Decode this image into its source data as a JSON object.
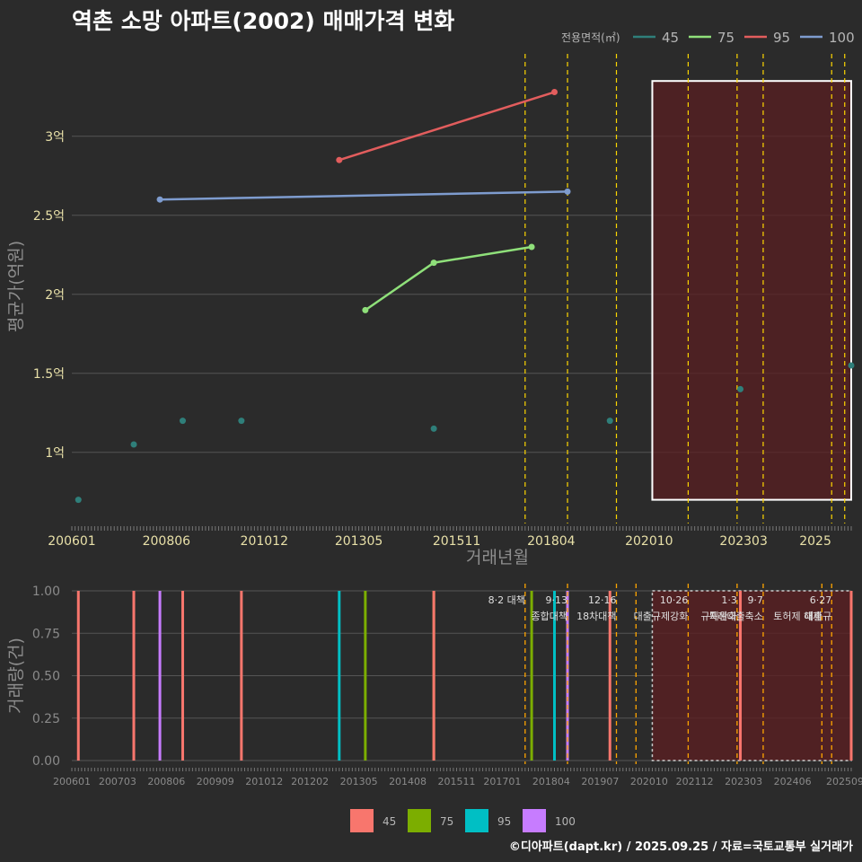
{
  "header": {
    "title": "역촌 소망 아파트(2002) 매매가격 변화",
    "footer": "©디아파트(dapt.kr) / 2025.09.25 / 자료=국토교통부 실거래가"
  },
  "colors": {
    "background": "#2b2b2b",
    "grid": "#555555",
    "event_line": "#ffd700",
    "event_line_bottom": "#ffa500",
    "shade": "#5a1f22"
  },
  "legend": {
    "title": "전용면적(㎡)",
    "position": "top-right",
    "items": [
      {
        "label": "45",
        "color": "#2f7f7a"
      },
      {
        "label": "75",
        "color": "#8fe07a"
      },
      {
        "label": "95",
        "color": "#e25d5d"
      },
      {
        "label": "100",
        "color": "#7e9ccf"
      }
    ]
  },
  "bottom_legend": {
    "position": "bottom",
    "items": [
      {
        "label": "45",
        "color": "#f8766d"
      },
      {
        "label": "75",
        "color": "#7cae00"
      },
      {
        "label": "95",
        "color": "#00bfc4"
      },
      {
        "label": "100",
        "color": "#c77cff"
      }
    ]
  },
  "chart_data": [
    {
      "type": "line",
      "title": "역촌 소망 아파트(2002) 매매가격 변화",
      "xlabel": "거래년월",
      "ylabel": "평균가(억원)",
      "x_ticks": [
        "200601",
        "200806",
        "201012",
        "201305",
        "201511",
        "201804",
        "202010",
        "202303",
        "2025"
      ],
      "y_ticks": [
        "1억",
        "1.5억",
        "2억",
        "2.5억",
        "3억"
      ],
      "y_tick_values": [
        1,
        1.5,
        2,
        2.5,
        3
      ],
      "xlim": [
        "2006-01",
        "2025-12"
      ],
      "ylim": [
        0.55,
        3.55
      ],
      "grid": true,
      "series": [
        {
          "name": "45",
          "mode": "points",
          "color": "#2f7f7a",
          "points": [
            {
              "x": "2006-03",
              "y": 0.7
            },
            {
              "x": "2007-08",
              "y": 1.05
            },
            {
              "x": "2008-11",
              "y": 1.2
            },
            {
              "x": "2010-05",
              "y": 1.2
            },
            {
              "x": "2015-04",
              "y": 1.15
            },
            {
              "x": "2019-10",
              "y": 1.2
            },
            {
              "x": "2023-02",
              "y": 1.4
            },
            {
              "x": "2025-12",
              "y": 1.55
            }
          ]
        },
        {
          "name": "75",
          "mode": "line",
          "color": "#8fe07a",
          "points": [
            {
              "x": "2013-07",
              "y": 1.9
            },
            {
              "x": "2015-04",
              "y": 2.2
            },
            {
              "x": "2017-10",
              "y": 2.3
            }
          ]
        },
        {
          "name": "95",
          "mode": "line",
          "color": "#e25d5d",
          "points": [
            {
              "x": "2012-11",
              "y": 2.85
            },
            {
              "x": "2018-05",
              "y": 3.28
            }
          ]
        },
        {
          "name": "100",
          "mode": "line",
          "color": "#7e9ccf",
          "points": [
            {
              "x": "2008-04",
              "y": 2.6
            },
            {
              "x": "2018-09",
              "y": 2.65
            }
          ]
        }
      ],
      "event_lines": [
        "2017-08",
        "2018-09",
        "2019-12",
        "2021-10",
        "2023-01",
        "2023-09",
        "2025-06",
        "2025-10"
      ],
      "shaded_region": {
        "x": [
          "2020-11",
          "2025-12"
        ],
        "y": [
          0.7,
          3.35
        ]
      }
    },
    {
      "type": "bar",
      "xlabel": "",
      "ylabel": "거래량(건)",
      "x_ticks": [
        "200601",
        "200703",
        "200806",
        "200909",
        "201012",
        "201202",
        "201305",
        "201408",
        "201511",
        "201701",
        "201804",
        "201907",
        "202010",
        "202112",
        "202303",
        "202406",
        "202509"
      ],
      "y_ticks": [
        "0.00",
        "0.25",
        "0.50",
        "0.75",
        "1.00"
      ],
      "y_tick_values": [
        0,
        0.25,
        0.5,
        0.75,
        1.0
      ],
      "ylim": [
        0,
        1.0
      ],
      "grid": true,
      "bars": [
        {
          "x": "2006-03",
          "value": 1,
          "series": "45"
        },
        {
          "x": "2007-08",
          "value": 1,
          "series": "45"
        },
        {
          "x": "2008-04",
          "value": 1,
          "series": "100"
        },
        {
          "x": "2008-11",
          "value": 1,
          "series": "45"
        },
        {
          "x": "2010-05",
          "value": 1,
          "series": "45"
        },
        {
          "x": "2012-11",
          "value": 1,
          "series": "95"
        },
        {
          "x": "2013-07",
          "value": 1,
          "series": "75"
        },
        {
          "x": "2015-04",
          "value": 1,
          "series": "75"
        },
        {
          "x": "2015-04",
          "value": 1,
          "series": "45"
        },
        {
          "x": "2017-10",
          "value": 1,
          "series": "75"
        },
        {
          "x": "2018-05",
          "value": 1,
          "series": "95"
        },
        {
          "x": "2018-09",
          "value": 1,
          "series": "100"
        },
        {
          "x": "2019-10",
          "value": 1,
          "series": "45"
        },
        {
          "x": "2023-02",
          "value": 1,
          "series": "45"
        },
        {
          "x": "2025-12",
          "value": 1,
          "series": "45"
        }
      ],
      "events": [
        {
          "x": "2017-08",
          "label_line1": "8·2 대책",
          "label_line2": ""
        },
        {
          "x": "2018-09",
          "label_line1": "9·13",
          "label_line2": "종합대책"
        },
        {
          "x": "2019-12",
          "label_line1": "12·16",
          "label_line2": "18차대책"
        },
        {
          "x": "2020-06",
          "label_line1": "",
          "label_line2": ""
        },
        {
          "x": "2021-10",
          "label_line1": "10·26",
          "label_line2": "대출규제강화"
        },
        {
          "x": "2023-01",
          "label_line1": "1·3",
          "label_line2": "규제완화"
        },
        {
          "x": "2023-09",
          "label_line1": "9·7",
          "label_line2": "특례대출축소"
        },
        {
          "x": "2025-03",
          "label_line1": "",
          "label_line2": "토허제 해제"
        },
        {
          "x": "2025-06",
          "label_line1": "6·27",
          "label_line2": "대출규"
        }
      ],
      "shaded_region": {
        "x": [
          "2020-11",
          "2025-12"
        ],
        "y": [
          0,
          1.0
        ]
      }
    }
  ]
}
